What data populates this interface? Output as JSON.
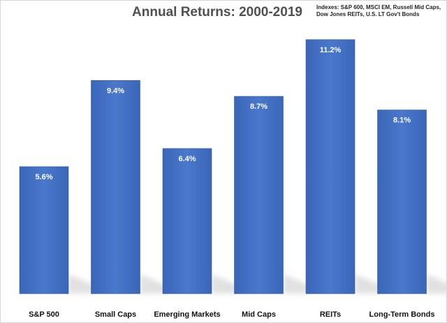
{
  "chart_data": {
    "type": "bar",
    "title": "Annual Returns: 2000-2019",
    "annotation": [
      "Indexes: S&P 600, MSCI EM, Russell Mid Caps,",
      "Dow Jones REITs, U.S. LT Gov't Bonds"
    ],
    "categories": [
      "S&P 500",
      "Small Caps",
      "Emerging Markets",
      "Mid Caps",
      "REITs",
      "Long-Term Bonds"
    ],
    "values": [
      5.6,
      9.4,
      6.4,
      8.7,
      11.2,
      8.1
    ],
    "data_labels": [
      "5.6%",
      "9.4%",
      "6.4%",
      "8.7%",
      "11.2%",
      "8.1%"
    ],
    "xlabel": "",
    "ylabel": "",
    "ylim": [
      0,
      12.3
    ],
    "grid": false,
    "legend": "none",
    "bar_color": "#4472c4",
    "shadow_color": "#c8c8c8"
  }
}
